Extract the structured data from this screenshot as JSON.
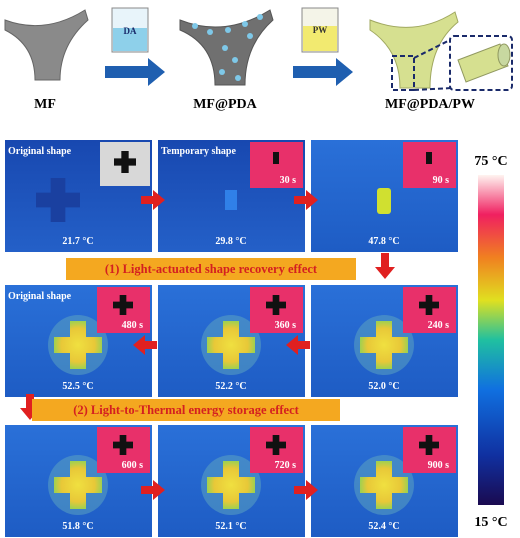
{
  "schematic": {
    "steps": [
      {
        "label": "MF"
      },
      {
        "label": "MF@PDA",
        "beaker": "DA"
      },
      {
        "label": "MF@PDA/PW",
        "beaker": "PW"
      }
    ]
  },
  "rows": [
    {
      "panels": [
        {
          "caption": "Original shape",
          "temperature": "21.7 °C"
        },
        {
          "caption": "Temporary shape",
          "time": "30 s",
          "temperature": "29.8 °C"
        },
        {
          "time": "90 s",
          "temperature": "47.8 °C"
        }
      ]
    },
    {
      "banner": "(1) Light-actuated shape recovery effect",
      "panels": [
        {
          "caption": "Original shape",
          "time": "480 s",
          "temperature": "52.5 °C"
        },
        {
          "time": "360 s",
          "temperature": "52.2 °C"
        },
        {
          "time": "240 s",
          "temperature": "52.0 °C"
        }
      ]
    },
    {
      "banner": "(2) Light-to-Thermal energy storage effect",
      "panels": [
        {
          "time": "600 s",
          "temperature": "51.8 °C"
        },
        {
          "time": "720 s",
          "temperature": "52.1 °C"
        },
        {
          "time": "900 s",
          "temperature": "52.4 °C"
        }
      ]
    }
  ],
  "colorbar": {
    "max_label": "75 °C",
    "min_label": "15 °C"
  }
}
